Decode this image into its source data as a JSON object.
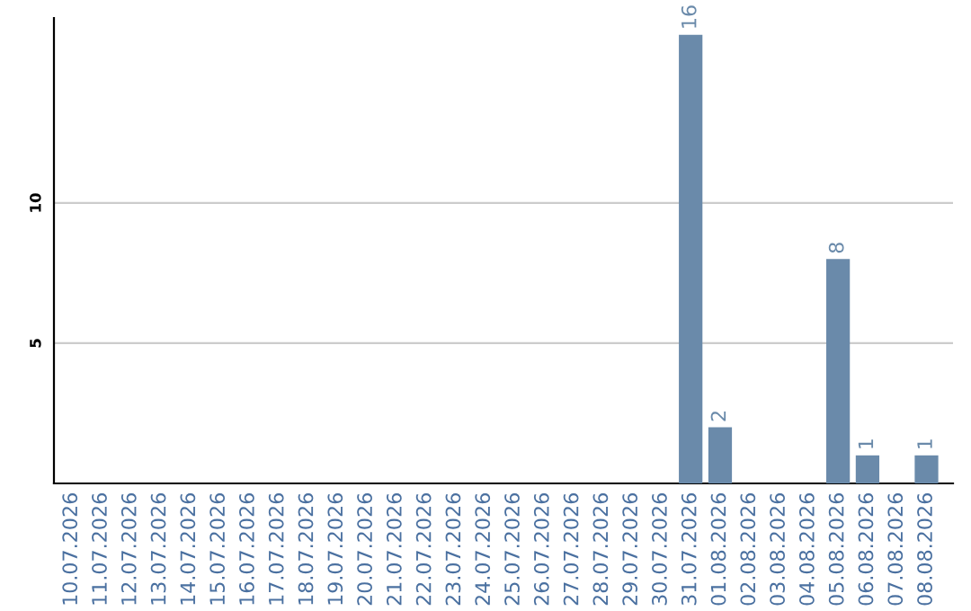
{
  "chart_data": {
    "type": "bar",
    "categories": [
      "10.07.2026",
      "11.07.2026",
      "12.07.2026",
      "13.07.2026",
      "14.07.2026",
      "15.07.2026",
      "16.07.2026",
      "17.07.2026",
      "18.07.2026",
      "19.07.2026",
      "20.07.2026",
      "21.07.2026",
      "22.07.2026",
      "23.07.2026",
      "24.07.2026",
      "25.07.2026",
      "26.07.2026",
      "27.07.2026",
      "28.07.2026",
      "29.07.2026",
      "30.07.2026",
      "31.07.2026",
      "01.08.2026",
      "02.08.2026",
      "03.08.2026",
      "04.08.2026",
      "05.08.2026",
      "06.08.2026",
      "07.08.2026",
      "08.08.2026"
    ],
    "values": [
      0,
      0,
      0,
      0,
      0,
      0,
      0,
      0,
      0,
      0,
      0,
      0,
      0,
      0,
      0,
      0,
      0,
      0,
      0,
      0,
      0,
      16,
      2,
      0,
      0,
      0,
      8,
      1,
      0,
      1
    ],
    "value_labels": [
      null,
      null,
      null,
      null,
      null,
      null,
      null,
      null,
      null,
      null,
      null,
      null,
      null,
      null,
      null,
      null,
      null,
      null,
      null,
      null,
      null,
      "16",
      "2",
      null,
      null,
      null,
      "8",
      "1",
      null,
      "1"
    ],
    "color": "#6a8aaa",
    "ylim": [
      0,
      16.6
    ],
    "yticks": [
      5,
      10
    ],
    "grid": "y"
  }
}
